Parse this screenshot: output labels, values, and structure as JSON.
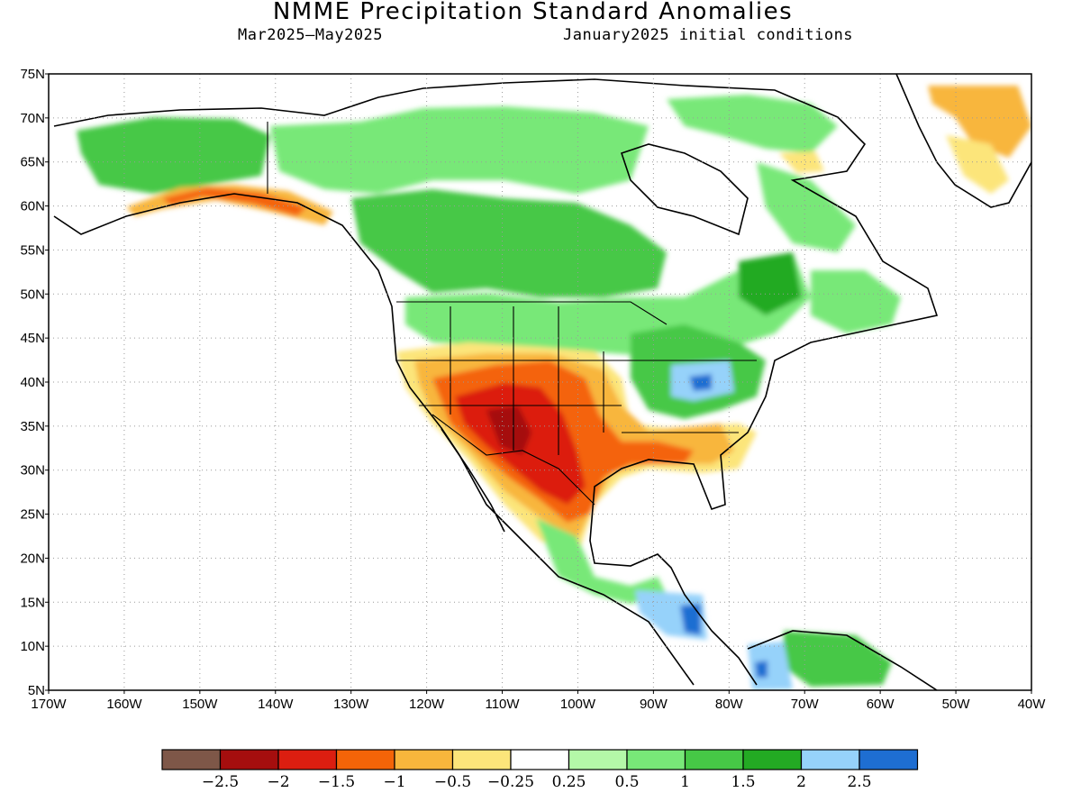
{
  "header": {
    "title": "NMME Precipitation Standard Anomalies",
    "period": "Mar2025—May2025",
    "initial_conditions": "January2025 initial conditions"
  },
  "map": {
    "lat_ticks": [
      "75N",
      "70N",
      "65N",
      "60N",
      "55N",
      "50N",
      "45N",
      "40N",
      "35N",
      "30N",
      "25N",
      "20N",
      "15N",
      "10N",
      "5N"
    ],
    "lon_ticks": [
      "170W",
      "160W",
      "150W",
      "140W",
      "130W",
      "120W",
      "110W",
      "100W",
      "90W",
      "80W",
      "70W",
      "60W",
      "50W",
      "40W"
    ],
    "lat_range": [
      5,
      75
    ],
    "lon_range": [
      -170,
      -40
    ],
    "gridlines": "dotted"
  },
  "colorbar": {
    "colors": [
      "#7e5748",
      "#a50e0e",
      "#dc1e10",
      "#f46408",
      "#f8b63c",
      "#fce57a",
      "#ffffff",
      "#b4f8a8",
      "#78e878",
      "#46c846",
      "#23aa23",
      "#96d2fa",
      "#1e6ed2"
    ],
    "labels": [
      "−2.5",
      "−2",
      "−1.5",
      "−1",
      "−0.5",
      "−0.25",
      "0.25",
      "0.5",
      "1",
      "1.5",
      "2",
      "2.5"
    ]
  },
  "legend_palette": {
    "ocean": "#ffffff",
    "coast": "#000000"
  }
}
